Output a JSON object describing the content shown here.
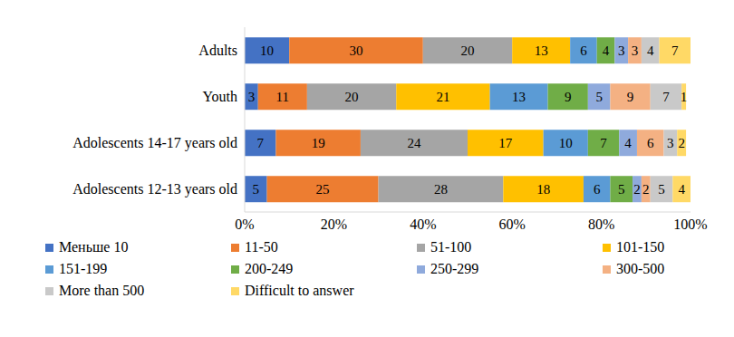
{
  "chart_data": {
    "type": "bar",
    "orientation": "horizontal",
    "stacked": true,
    "data_labels": true,
    "grid": false,
    "legend": "bottom",
    "categories": [
      "Adults",
      "Youth",
      "Adolescents 14-17 years old",
      "Adolescents 12-13 years old"
    ],
    "xlim": [
      0,
      100
    ],
    "xticks": [
      {
        "value": 0,
        "label": "0%"
      },
      {
        "value": 20,
        "label": "20%"
      },
      {
        "value": 40,
        "label": "40%"
      },
      {
        "value": 60,
        "label": "60%"
      },
      {
        "value": 80,
        "label": "80%"
      },
      {
        "value": 100,
        "label": "100%"
      }
    ],
    "series": [
      {
        "name": "Меньше 10",
        "color": "#4472c4",
        "values": [
          10,
          3,
          7,
          5
        ]
      },
      {
        "name": "11-50",
        "color": "#ed7d31",
        "values": [
          30,
          11,
          19,
          25
        ]
      },
      {
        "name": "51-100",
        "color": "#a5a5a5",
        "values": [
          20,
          20,
          24,
          28
        ]
      },
      {
        "name": "101-150",
        "color": "#ffc000",
        "values": [
          13,
          21,
          17,
          18
        ]
      },
      {
        "name": "151-199",
        "color": "#5b9bd5",
        "values": [
          6,
          13,
          10,
          6
        ]
      },
      {
        "name": "200-249",
        "color": "#70ad47",
        "values": [
          4,
          9,
          7,
          5
        ]
      },
      {
        "name": "250-299",
        "color": "#8faadc",
        "values": [
          3,
          5,
          4,
          2
        ]
      },
      {
        "name": "300-500",
        "color": "#f4b183",
        "values": [
          3,
          9,
          6,
          2
        ]
      },
      {
        "name": "More than 500",
        "color": "#c9c9c9",
        "values": [
          4,
          7,
          3,
          5
        ]
      },
      {
        "name": "Difficult to answer",
        "color": "#ffd966",
        "values": [
          7,
          1,
          2,
          4
        ]
      }
    ]
  }
}
